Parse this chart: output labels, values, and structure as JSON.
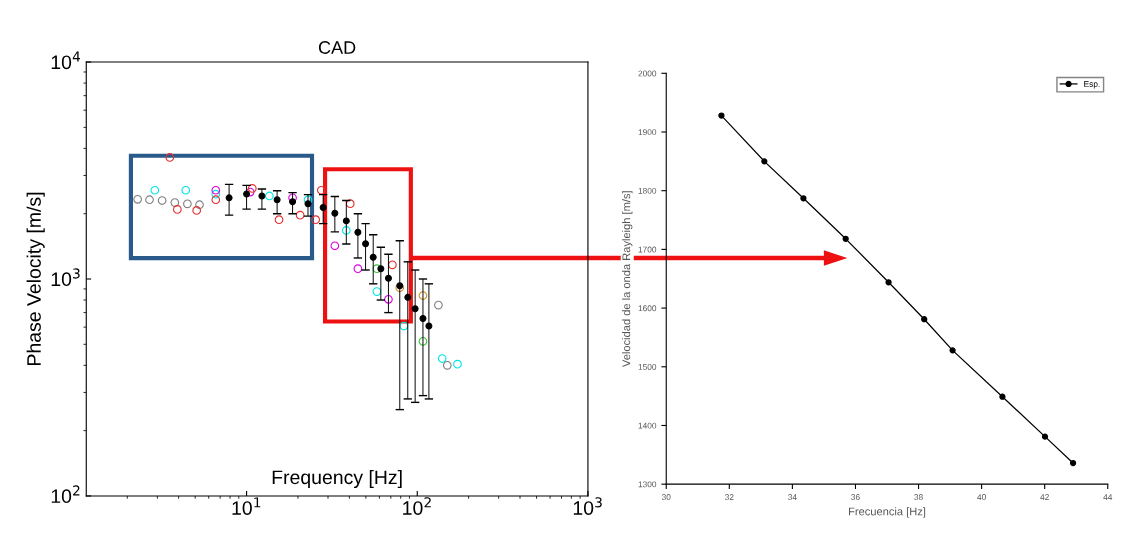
{
  "chart_data": [
    {
      "type": "scatter",
      "title": "CAD",
      "xlabel": "Frequency [Hz]",
      "ylabel": "Phase Velocity [m/s]",
      "log": "xy",
      "xlim": [
        1.15,
        1000
      ],
      "ylim": [
        100,
        10000
      ],
      "xticks": [
        {
          "value": 10,
          "label": "10$^{1}$"
        },
        {
          "value": 100,
          "label": "10$^{2}$"
        },
        {
          "value": 1000,
          "label": "10$^{3}$"
        }
      ],
      "yticks": [
        {
          "value": 100,
          "label": "10$^{2}$"
        },
        {
          "value": 1000,
          "label": "10$^{3}$"
        },
        {
          "value": 10000,
          "label": "10$^{4}$"
        }
      ],
      "marker": "circle",
      "grid": false,
      "legend": false,
      "series": [
        {
          "color": "#808080",
          "x": [
            2.3,
            2.7,
            3.2,
            3.8,
            4.5,
            5.3,
            133,
            150
          ],
          "values": [
            2330,
            2320,
            2300,
            2250,
            2220,
            2200,
            758,
            400
          ]
        },
        {
          "color": "#00e5e5",
          "x": [
            2.9,
            4.4,
            6.6,
            13.6,
            22.9,
            38.4,
            58,
            83.5,
            140,
            172
          ],
          "values": [
            2565,
            2565,
            2460,
            2414,
            2317,
            1675,
            875,
            607,
            430,
            405
          ]
        },
        {
          "color": "#e000e0",
          "x": [
            6.6,
            10.5,
            18.6,
            32.9,
            44.9,
            67.8
          ],
          "values": [
            2565,
            2516,
            2366,
            1423,
            1116,
            806
          ]
        },
        {
          "color": "#e53030",
          "x": [
            3.55,
            3.93,
            5.1,
            6.6,
            10.8,
            15.5,
            20.6,
            25.4,
            27.4,
            40.5,
            71.5
          ],
          "values": [
            3635,
            2093,
            2070,
            2320,
            2616,
            1877,
            1969,
            1877,
            2565,
            2224,
            1162
          ]
        },
        {
          "color": "#d09030",
          "x": [
            79,
            108
          ],
          "values": [
            911,
            839
          ]
        },
        {
          "color": "#40c040",
          "x": [
            58,
            108
          ],
          "values": [
            1116,
            516
          ]
        },
        {
          "color": "#000000",
          "x": [
            7.9,
            10,
            12.3,
            15.1,
            18.6,
            22.9,
            28.1,
            32.9,
            38.4,
            44.9,
            49.8,
            55.2,
            61.2,
            67.8,
            79,
            88,
            97.2,
            108,
            117
          ],
          "values": [
            2366,
            2466,
            2414,
            2317,
            2270,
            2225,
            2137,
            2010,
            1853,
            1641,
            1453,
            1260,
            1116,
            1008,
            930,
            823,
            729,
            658,
            607
          ],
          "errors": [
            [
              1970,
              2730
            ],
            [
              2100,
              2700
            ],
            [
              2100,
              2600
            ],
            [
              2000,
              2550
            ],
            [
              2000,
              2500
            ],
            [
              1950,
              2450
            ],
            [
              1800,
              2450
            ],
            [
              1650,
              2400
            ],
            [
              1450,
              2300
            ],
            [
              1250,
              2000
            ],
            [
              1100,
              1800
            ],
            [
              950,
              1600
            ],
            [
              800,
              1400
            ],
            [
              700,
              1300
            ],
            [
              250,
              1500
            ],
            [
              280,
              1200
            ],
            [
              270,
              1100
            ],
            [
              290,
              1000
            ],
            [
              280,
              950
            ]
          ]
        }
      ]
    },
    {
      "type": "line",
      "xlabel": "Frecuencia [Hz]",
      "ylabel": "Velocidad de la onda Rayleigh [m/s]",
      "xlim": [
        30,
        44
      ],
      "ylim": [
        1300,
        2000
      ],
      "xticks": [
        30,
        32,
        34,
        36,
        38,
        40,
        42,
        44
      ],
      "yticks": [
        1300,
        1400,
        1500,
        1600,
        1700,
        1800,
        1900,
        2000
      ],
      "marker": "circle",
      "line_style": "solid",
      "grid": false,
      "legend": "top right",
      "series": [
        {
          "name": "Esp.",
          "color": "#000000",
          "x": [
            31.75,
            33.11,
            34.35,
            35.69,
            37.05,
            38.18,
            39.08,
            40.66,
            42.01,
            42.9
          ],
          "values": [
            1928,
            1850,
            1787,
            1718,
            1644,
            1581,
            1528,
            1449,
            1381,
            1336
          ]
        }
      ]
    }
  ]
}
